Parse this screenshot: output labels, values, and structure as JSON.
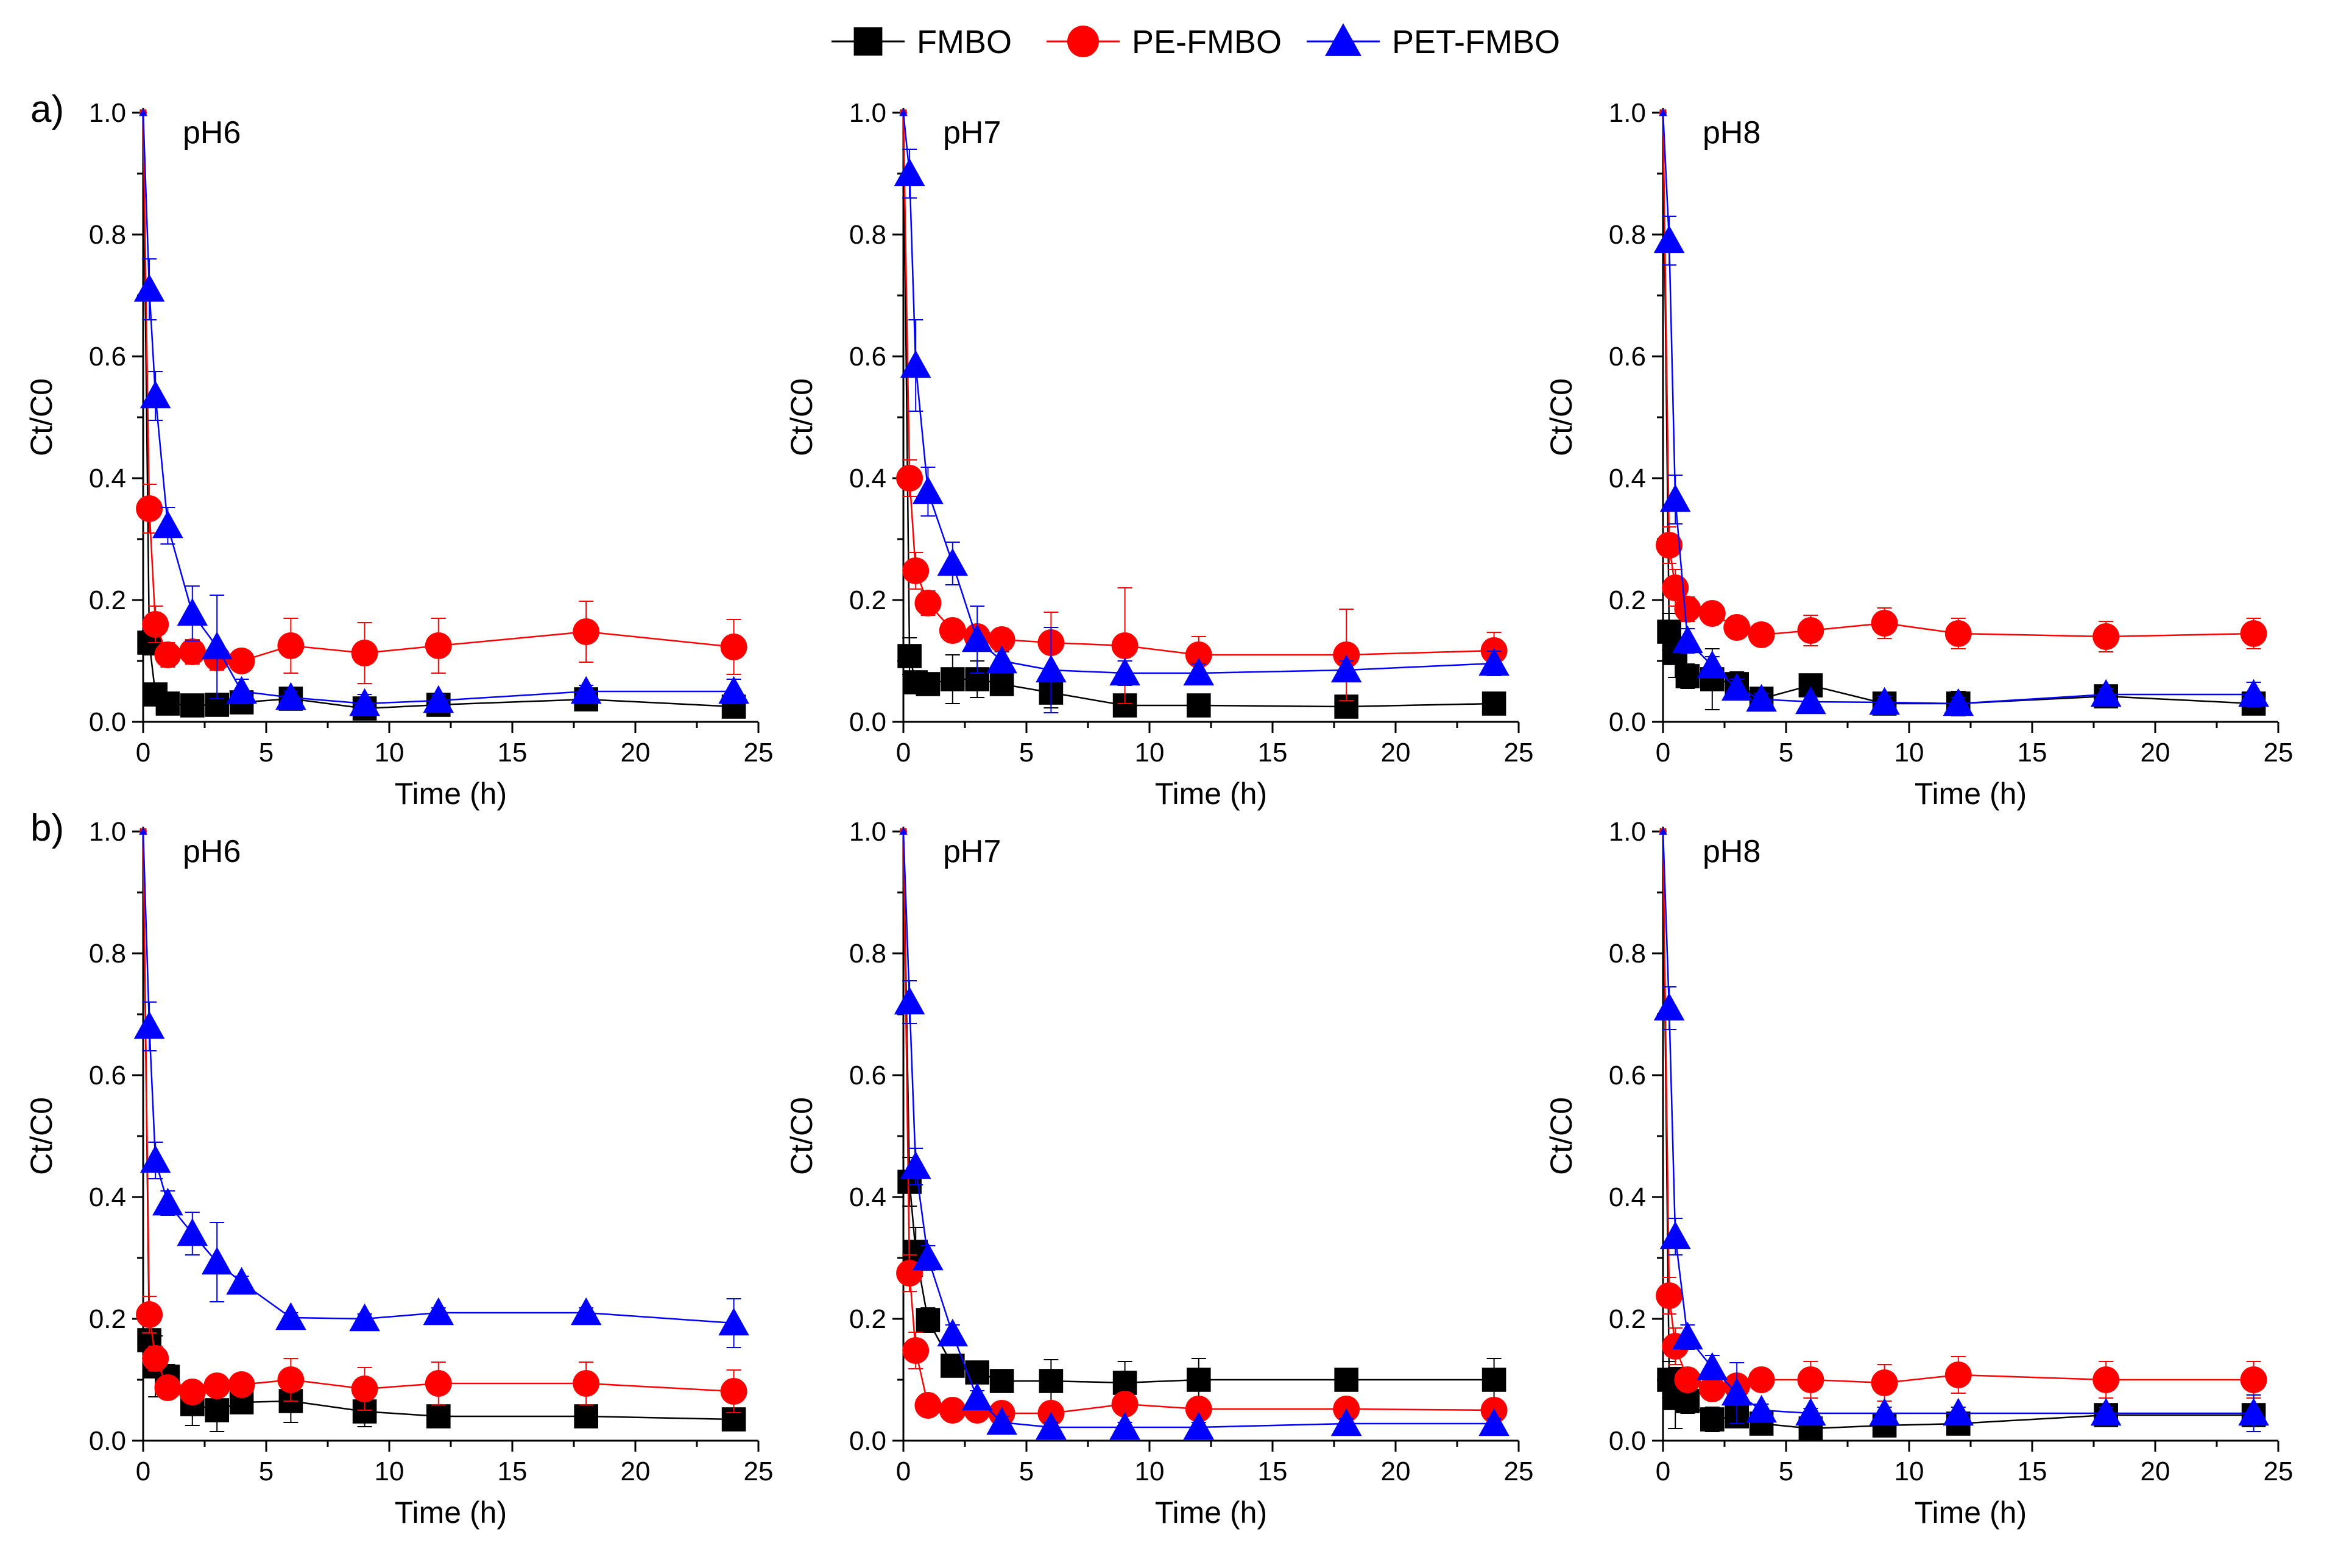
{
  "legend": [
    {
      "name": "FMBO",
      "marker": "square",
      "color": "#000000"
    },
    {
      "name": "PE-FMBO",
      "marker": "circle",
      "color": "#FF0000"
    },
    {
      "name": "PET-FMBO",
      "marker": "triangle",
      "color": "#0000FF"
    }
  ],
  "row_labels": [
    "a)",
    "b)"
  ],
  "chart_data": [
    {
      "type": "line",
      "row": "a)",
      "title": "pH6",
      "xlabel": "Time (h)",
      "ylabel": "Ct/C0",
      "xlim": [
        0,
        25
      ],
      "ylim": [
        0,
        1.0
      ],
      "xticks": [
        "0",
        "5",
        "10",
        "15",
        "20",
        "25"
      ],
      "yticks": [
        "0.0",
        "0.2",
        "0.4",
        "0.6",
        "0.8",
        "1.0"
      ],
      "x": [
        0,
        0.25,
        0.5,
        1,
        2,
        3,
        4,
        6,
        9,
        12,
        18,
        24
      ],
      "series": [
        {
          "name": "FMBO",
          "values": [
            1.0,
            0.13,
            0.045,
            0.03,
            0.027,
            0.028,
            0.032,
            0.038,
            0.022,
            0.028,
            0.037,
            0.025
          ],
          "errors": [
            0,
            0.02,
            0.01,
            0.01,
            0.008,
            0.008,
            0.008,
            0.008,
            0.006,
            0.008,
            0.01,
            0.008
          ]
        },
        {
          "name": "PE-FMBO",
          "values": [
            1.0,
            0.35,
            0.16,
            0.11,
            0.115,
            0.105,
            0.1,
            0.125,
            0.113,
            0.125,
            0.148,
            0.123
          ],
          "errors": [
            0,
            0.04,
            0.03,
            0.02,
            0.02,
            0.02,
            0.015,
            0.045,
            0.05,
            0.045,
            0.05,
            0.045
          ]
        },
        {
          "name": "PET-FMBO",
          "values": [
            1.0,
            0.71,
            0.535,
            0.322,
            0.178,
            0.123,
            0.05,
            0.04,
            0.03,
            0.035,
            0.05,
            0.05
          ],
          "errors": [
            0,
            0.05,
            0.04,
            0.03,
            0.045,
            0.085,
            0.02,
            0.01,
            0.015,
            0.01,
            0.01,
            0.02
          ]
        }
      ]
    },
    {
      "type": "line",
      "row": "a)",
      "title": "pH7",
      "xlabel": "Time (h)",
      "ylabel": "Ct/C0",
      "xlim": [
        0,
        25
      ],
      "ylim": [
        0,
        1.0
      ],
      "xticks": [
        "0",
        "5",
        "10",
        "15",
        "20",
        "25"
      ],
      "yticks": [
        "0.0",
        "0.2",
        "0.4",
        "0.6",
        "0.8",
        "1.0"
      ],
      "x": [
        0,
        0.25,
        0.5,
        1,
        2,
        3,
        4,
        6,
        9,
        12,
        18,
        24
      ],
      "series": [
        {
          "name": "FMBO",
          "values": [
            1.0,
            0.108,
            0.065,
            0.062,
            0.07,
            0.07,
            0.062,
            0.048,
            0.027,
            0.027,
            0.025,
            0.03
          ],
          "errors": [
            0,
            0.03,
            0.01,
            0.01,
            0.04,
            0.03,
            0.01,
            0.025,
            0.008,
            0.008,
            0.008,
            0.01
          ]
        },
        {
          "name": "PE-FMBO",
          "values": [
            1.0,
            0.4,
            0.248,
            0.195,
            0.15,
            0.14,
            0.135,
            0.13,
            0.125,
            0.11,
            0.11,
            0.117
          ],
          "errors": [
            0,
            0.03,
            0.03,
            0.02,
            0.015,
            0.015,
            0.01,
            0.05,
            0.095,
            0.03,
            0.075,
            0.03
          ]
        },
        {
          "name": "PET-FMBO",
          "values": [
            1.0,
            0.9,
            0.585,
            0.378,
            0.26,
            0.135,
            0.1,
            0.085,
            0.08,
            0.08,
            0.085,
            0.096
          ],
          "errors": [
            0,
            0.04,
            0.075,
            0.04,
            0.035,
            0.055,
            0.015,
            0.07,
            0.02,
            0.015,
            0.015,
            0.02
          ]
        }
      ]
    },
    {
      "type": "line",
      "row": "a)",
      "title": "pH8",
      "xlabel": "Time (h)",
      "ylabel": "Ct/C0",
      "xlim": [
        0,
        25
      ],
      "ylim": [
        0,
        1.0
      ],
      "xticks": [
        "0",
        "5",
        "10",
        "15",
        "20",
        "25"
      ],
      "yticks": [
        "0.0",
        "0.2",
        "0.4",
        "0.6",
        "0.8",
        "1.0"
      ],
      "x": [
        0,
        0.25,
        0.5,
        1,
        2,
        3,
        4,
        6,
        9,
        12,
        18,
        24
      ],
      "series": [
        {
          "name": "FMBO",
          "values": [
            1.0,
            0.148,
            0.113,
            0.075,
            0.07,
            0.062,
            0.038,
            0.06,
            0.03,
            0.03,
            0.042,
            0.03
          ],
          "errors": [
            0,
            0.03,
            0.04,
            0.02,
            0.05,
            0.02,
            0.01,
            0.015,
            0.015,
            0.02,
            0.01,
            0.01
          ]
        },
        {
          "name": "PE-FMBO",
          "values": [
            1.0,
            0.29,
            0.22,
            0.185,
            0.178,
            0.155,
            0.143,
            0.15,
            0.162,
            0.145,
            0.14,
            0.145
          ],
          "errors": [
            0,
            0.03,
            0.03,
            0.02,
            0.012,
            0.012,
            0.012,
            0.025,
            0.025,
            0.025,
            0.025,
            0.025
          ]
        },
        {
          "name": "PET-FMBO",
          "values": [
            1.0,
            0.79,
            0.365,
            0.133,
            0.092,
            0.055,
            0.037,
            0.033,
            0.032,
            0.03,
            0.045,
            0.045
          ],
          "errors": [
            0,
            0.04,
            0.04,
            0.02,
            0.015,
            0.015,
            0.01,
            0.008,
            0.01,
            0.01,
            0.01,
            0.02
          ]
        }
      ]
    },
    {
      "type": "line",
      "row": "b)",
      "title": "pH6",
      "xlabel": "Time (h)",
      "ylabel": "Ct/C0",
      "xlim": [
        0,
        25
      ],
      "ylim": [
        0,
        1.0
      ],
      "xticks": [
        "0",
        "5",
        "10",
        "15",
        "20",
        "25"
      ],
      "yticks": [
        "0.0",
        "0.2",
        "0.4",
        "0.6",
        "0.8",
        "1.0"
      ],
      "x": [
        0,
        0.25,
        0.5,
        1,
        2,
        3,
        4,
        6,
        9,
        12,
        18,
        24
      ],
      "series": [
        {
          "name": "FMBO",
          "values": [
            1.0,
            0.165,
            0.122,
            0.105,
            0.06,
            0.05,
            0.063,
            0.065,
            0.048,
            0.04,
            0.04,
            0.035
          ],
          "errors": [
            0,
            0.03,
            0.05,
            0.02,
            0.035,
            0.035,
            0.01,
            0.035,
            0.025,
            0.01,
            0.01,
            0.01
          ]
        },
        {
          "name": "PE-FMBO",
          "values": [
            1.0,
            0.207,
            0.135,
            0.087,
            0.08,
            0.09,
            0.092,
            0.1,
            0.085,
            0.094,
            0.094,
            0.081
          ],
          "errors": [
            0,
            0.03,
            0.02,
            0.015,
            0.015,
            0.015,
            0.01,
            0.035,
            0.035,
            0.035,
            0.035,
            0.035
          ]
        },
        {
          "name": "PET-FMBO",
          "values": [
            1.0,
            0.68,
            0.46,
            0.39,
            0.34,
            0.293,
            0.26,
            0.202,
            0.2,
            0.21,
            0.21,
            0.193
          ],
          "errors": [
            0,
            0.04,
            0.03,
            0.02,
            0.035,
            0.065,
            0.01,
            0.008,
            0.008,
            0.008,
            0.008,
            0.04
          ]
        }
      ]
    },
    {
      "type": "line",
      "row": "b)",
      "title": "pH7",
      "xlabel": "Time (h)",
      "ylabel": "Ct/C0",
      "xlim": [
        0,
        25
      ],
      "ylim": [
        0,
        1.0
      ],
      "xticks": [
        "0",
        "5",
        "10",
        "15",
        "20",
        "25"
      ],
      "yticks": [
        "0.0",
        "0.2",
        "0.4",
        "0.6",
        "0.8",
        "1.0"
      ],
      "x": [
        0,
        0.25,
        0.5,
        1,
        2,
        3,
        4,
        6,
        9,
        12,
        18,
        24
      ],
      "series": [
        {
          "name": "FMBO",
          "values": [
            1.0,
            0.425,
            0.31,
            0.198,
            0.123,
            0.112,
            0.098,
            0.098,
            0.095,
            0.1,
            0.1,
            0.1
          ],
          "errors": [
            0,
            0.04,
            0.04,
            0.02,
            0.015,
            0.015,
            0.01,
            0.035,
            0.035,
            0.035,
            0.01,
            0.035
          ]
        },
        {
          "name": "PE-FMBO",
          "values": [
            1.0,
            0.275,
            0.148,
            0.058,
            0.05,
            0.05,
            0.045,
            0.045,
            0.06,
            0.052,
            0.052,
            0.05
          ],
          "errors": [
            0,
            0.03,
            0.03,
            0.01,
            0.01,
            0.01,
            0.008,
            0.008,
            0.012,
            0.01,
            0.01,
            0.01
          ]
        },
        {
          "name": "PET-FMBO",
          "values": [
            1.0,
            0.72,
            0.45,
            0.3,
            0.175,
            0.07,
            0.03,
            0.022,
            0.022,
            0.022,
            0.028,
            0.028
          ],
          "errors": [
            0,
            0.035,
            0.03,
            0.02,
            0.015,
            0.012,
            0.01,
            0.008,
            0.008,
            0.008,
            0.008,
            0.008
          ]
        }
      ]
    },
    {
      "type": "line",
      "row": "b)",
      "title": "pH8",
      "xlabel": "Time (h)",
      "ylabel": "Ct/C0",
      "xlim": [
        0,
        25
      ],
      "ylim": [
        0,
        1.0
      ],
      "xticks": [
        "0",
        "5",
        "10",
        "15",
        "20",
        "25"
      ],
      "yticks": [
        "0.0",
        "0.2",
        "0.4",
        "0.6",
        "0.8",
        "1.0"
      ],
      "x": [
        0,
        0.25,
        0.5,
        1,
        2,
        3,
        4,
        6,
        9,
        12,
        18,
        24
      ],
      "series": [
        {
          "name": "FMBO",
          "values": [
            1.0,
            0.1,
            0.07,
            0.065,
            0.035,
            0.04,
            0.028,
            0.02,
            0.025,
            0.028,
            0.042,
            0.042
          ],
          "errors": [
            0,
            0.03,
            0.05,
            0.02,
            0.02,
            0.01,
            0.008,
            0.008,
            0.008,
            0.008,
            0.008,
            0.008
          ]
        },
        {
          "name": "PE-FMBO",
          "values": [
            1.0,
            0.238,
            0.155,
            0.1,
            0.085,
            0.09,
            0.1,
            0.1,
            0.095,
            0.108,
            0.1,
            0.1
          ],
          "errors": [
            0,
            0.03,
            0.03,
            0.015,
            0.015,
            0.015,
            0.01,
            0.03,
            0.03,
            0.03,
            0.03,
            0.03
          ]
        },
        {
          "name": "PET-FMBO",
          "values": [
            1.0,
            0.71,
            0.335,
            0.17,
            0.12,
            0.078,
            0.05,
            0.045,
            0.045,
            0.045,
            0.045,
            0.045
          ],
          "errors": [
            0,
            0.035,
            0.03,
            0.02,
            0.02,
            0.05,
            0.01,
            0.008,
            0.01,
            0.01,
            0.01,
            0.03
          ]
        }
      ]
    }
  ]
}
